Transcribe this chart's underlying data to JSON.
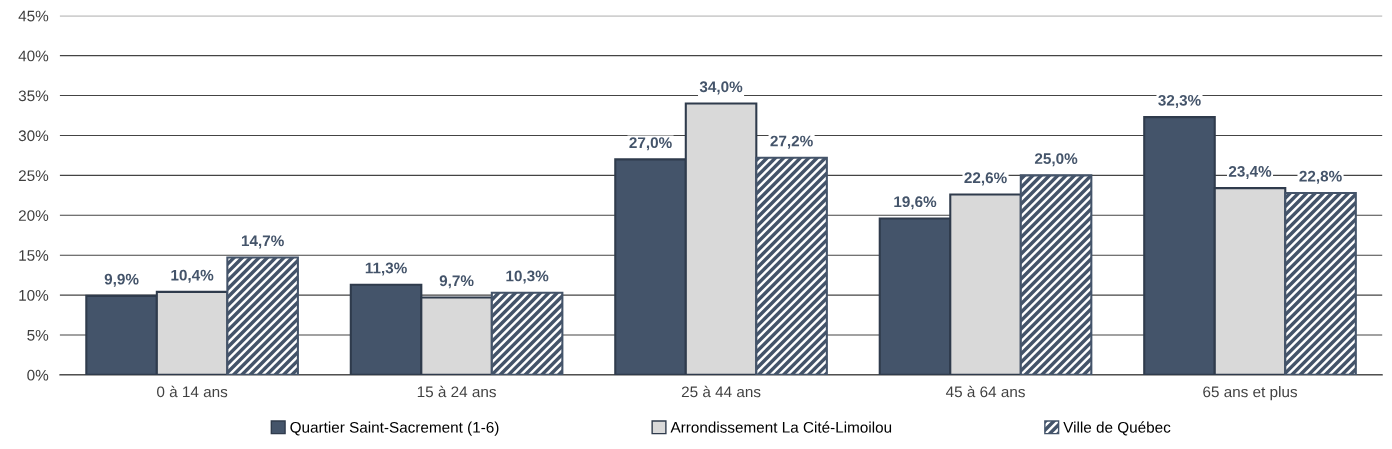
{
  "chart_data": {
    "type": "bar",
    "categories": [
      "0 à 14 ans",
      "15 à 24 ans",
      "25 à 44 ans",
      "45 à 64 ans",
      "65 ans et plus"
    ],
    "series": [
      {
        "name": "Quartier Saint-Sacrement (1-6)",
        "color": "#44546a",
        "values": [
          9.9,
          11.3,
          27.0,
          19.6,
          32.3
        ],
        "value_labels": [
          "9,9%",
          "11,3%",
          "27,0%",
          "19,6%",
          "32,3%"
        ]
      },
      {
        "name": "Arrondissement La Cité-Limoilou",
        "color": "#d9d9d9",
        "values": [
          10.4,
          9.7,
          34.0,
          22.6,
          23.4
        ],
        "value_labels": [
          "10,4%",
          "9,7%",
          "34,0%",
          "22,6%",
          "23,4%"
        ]
      },
      {
        "name": "Ville de Québec",
        "color": "#44546a",
        "values": [
          14.7,
          10.3,
          27.2,
          25.0,
          22.8
        ],
        "value_labels": [
          "14,7%",
          "10,3%",
          "27,2%",
          "25,0%",
          "22,8%"
        ]
      }
    ],
    "ylim": [
      0,
      45
    ],
    "yticks": [
      {
        "value": 0,
        "label": "0%"
      },
      {
        "value": 5,
        "label": "5%"
      },
      {
        "value": 10,
        "label": "10%"
      },
      {
        "value": 15,
        "label": "15%"
      },
      {
        "value": 20,
        "label": "20%"
      },
      {
        "value": 25,
        "label": "25%"
      },
      {
        "value": 30,
        "label": "30%"
      },
      {
        "value": 35,
        "label": "35%"
      },
      {
        "value": 40,
        "label": "40%"
      },
      {
        "value": 45,
        "label": "45%"
      }
    ],
    "grid": "y",
    "legend": "bottom"
  }
}
